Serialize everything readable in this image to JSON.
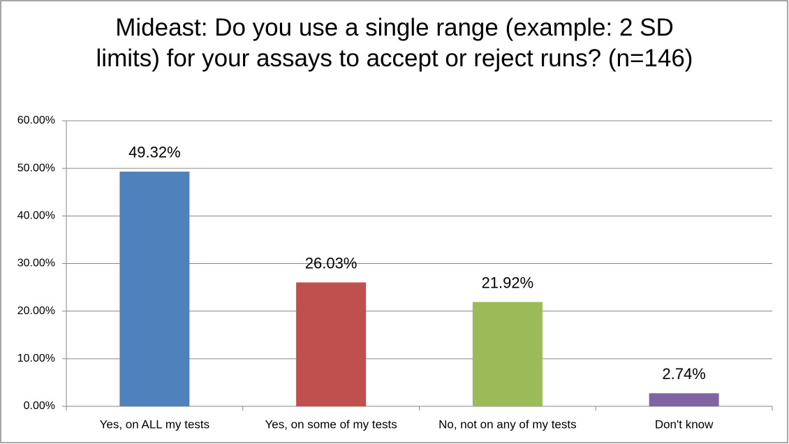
{
  "chart_data": {
    "type": "bar",
    "title": "Mideast: Do you use a single range (example: 2 SD limits) for your assays to accept or reject runs? (n=146)",
    "categories": [
      "Yes, on ALL my tests",
      "Yes, on some of my tests",
      "No, not on any of my tests",
      "Don't know"
    ],
    "values": [
      49.32,
      26.03,
      21.92,
      2.74
    ],
    "value_labels": [
      "49.32%",
      "26.03%",
      "21.92%",
      "2.74%"
    ],
    "colors": [
      "#4f81bd",
      "#c0504d",
      "#9bbb59",
      "#8064a2"
    ],
    "ylim": [
      0,
      60
    ],
    "yticks": [
      {
        "value": 0,
        "label": "0.00%"
      },
      {
        "value": 10,
        "label": "10.00%"
      },
      {
        "value": 20,
        "label": "20.00%"
      },
      {
        "value": 30,
        "label": "30.00%"
      },
      {
        "value": 40,
        "label": "40.00%"
      },
      {
        "value": 50,
        "label": "50.00%"
      },
      {
        "value": 60,
        "label": "60.00%"
      }
    ],
    "grid": true
  }
}
